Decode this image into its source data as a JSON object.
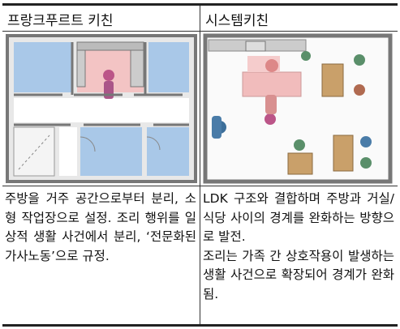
{
  "table": {
    "header": [
      "프랑크푸르트 키친",
      "시스템키친"
    ],
    "descriptions": [
      [
        "주방을 거주 공간으로부터 분리, 소형 작업장으로 설정. 조리 행위를 일상적 생활 사건에서 분리, ‘전문화된 가사노동’으로 규정."
      ],
      [
        "LDK 구조와 결합하며 주방과 거실/식당 사이의 경계를 완화하는 방향으로 발전.",
        "조리는 가족 간 상호작용이 발생하는 생활 사건으로 확장되어 경계가 완화됨."
      ]
    ]
  }
}
